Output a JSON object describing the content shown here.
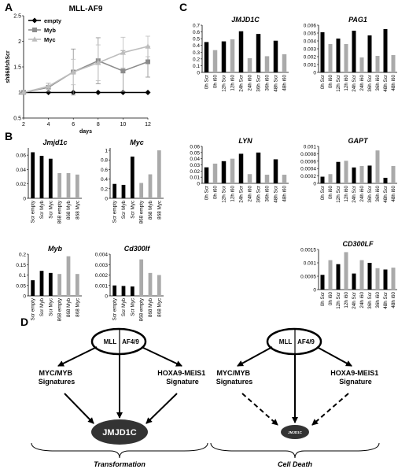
{
  "panel_letters": {
    "A": "A",
    "B": "B",
    "C": "C",
    "D": "D"
  },
  "colors": {
    "dark": "#000000",
    "light": "#aaaaaa",
    "mid": "#8c8c8c",
    "lightline": "#bdbdbd"
  },
  "chart_data": [
    {
      "id": "A",
      "type": "line",
      "title": "MLL-AF9",
      "xlabel": "days",
      "ylabel": "sh868/shScr",
      "x": [
        2,
        4,
        6,
        8,
        10,
        12
      ],
      "xlim": [
        2,
        12
      ],
      "ylim": [
        0.5,
        2.5
      ],
      "xticks": [
        "2",
        "4",
        "6",
        "8",
        "10",
        "12"
      ],
      "yticks": [
        "0.5",
        "1",
        "1.5",
        "2",
        "2.5"
      ],
      "grid": false,
      "legend_position": "top-left",
      "series": [
        {
          "name": "empty",
          "values": [
            1,
            1,
            1,
            1,
            1,
            1
          ],
          "err": [
            0,
            0,
            0,
            0,
            0,
            0
          ],
          "color": "#000000",
          "marker": "diamond"
        },
        {
          "name": "Myb",
          "values": [
            1,
            1.1,
            1.4,
            1.62,
            1.42,
            1.6
          ],
          "err": [
            0,
            0.08,
            0.45,
            0.45,
            0.4,
            0.3
          ],
          "color": "#8c8c8c",
          "marker": "square"
        },
        {
          "name": "Myc",
          "values": [
            1,
            1.12,
            1.4,
            1.58,
            1.78,
            1.9
          ],
          "err": [
            0,
            0.06,
            0.25,
            0.35,
            0.3,
            0.2
          ],
          "color": "#bdbdbd",
          "marker": "triangle"
        }
      ]
    },
    {
      "id": "B1",
      "type": "bar",
      "title": "Jmjd1c",
      "categories": [
        "Scr empty",
        "Scr Myb",
        "Scr Myc",
        "868 empty",
        "868 Myb",
        "868 Myc"
      ],
      "values": [
        0.064,
        0.059,
        0.055,
        0.035,
        0.035,
        0.033
      ],
      "bar_colors": [
        "dark",
        "dark",
        "dark",
        "light",
        "light",
        "light"
      ],
      "ylim": [
        0,
        0.07
      ],
      "yticks": [
        "0",
        "0.02",
        "0.04",
        "0.06"
      ]
    },
    {
      "id": "B2",
      "type": "bar",
      "title": "Myc",
      "categories": [
        "Scr empty",
        "Scr Myb",
        "Scr Myc",
        "868 empty",
        "868 Myb",
        "868 Myc"
      ],
      "values": [
        0.3,
        0.28,
        0.87,
        0.32,
        0.5,
        1.0
      ],
      "bar_colors": [
        "dark",
        "dark",
        "dark",
        "light",
        "light",
        "light"
      ],
      "ylim": [
        0,
        1.05
      ],
      "yticks": [
        "0",
        "0.2",
        "0.4",
        "0.6",
        "0.8",
        "1"
      ]
    },
    {
      "id": "B3",
      "type": "bar",
      "title": "Myb",
      "categories": [
        "Scr empty",
        "Scr Myb",
        "Scr Myc",
        "868 empty",
        "868 Myb",
        "868 Myc"
      ],
      "values": [
        0.075,
        0.12,
        0.11,
        0.105,
        0.19,
        0.105
      ],
      "bar_colors": [
        "dark",
        "dark",
        "dark",
        "light",
        "light",
        "light"
      ],
      "ylim": [
        0,
        0.2
      ],
      "yticks": [
        "0",
        "0.05",
        "0.1",
        "0.15",
        "0.2"
      ]
    },
    {
      "id": "B4",
      "type": "bar",
      "title": "Cd300lf",
      "categories": [
        "Scr empty",
        "Scr Myb",
        "Scr Myc",
        "868 empty",
        "868 Myb",
        "868 Myc"
      ],
      "values": [
        0.001,
        0.00095,
        0.0009,
        0.0035,
        0.0022,
        0.002
      ],
      "bar_colors": [
        "dark",
        "dark",
        "dark",
        "light",
        "light",
        "light"
      ],
      "ylim": [
        0,
        0.004
      ],
      "yticks": [
        "0",
        "0.001",
        "0.002",
        "0.003",
        "0.004"
      ]
    },
    {
      "id": "C1",
      "type": "bar",
      "title": "JMJD1C",
      "categories": [
        "0h Scr",
        "0h i60",
        "12h Scr",
        "12h i60",
        "24h Scr",
        "24h i60",
        "36h Scr",
        "36h i60",
        "48h Scr",
        "48h i60"
      ],
      "values": [
        0.45,
        0.33,
        0.46,
        0.49,
        0.61,
        0.21,
        0.57,
        0.24,
        0.47,
        0.27
      ],
      "bar_colors": [
        "dark",
        "light",
        "dark",
        "light",
        "dark",
        "light",
        "dark",
        "light",
        "dark",
        "light"
      ],
      "ylim": [
        0,
        0.7
      ],
      "yticks": [
        "0",
        "0.1",
        "0.2",
        "0.3",
        "0.4",
        "0.5",
        "0.6",
        "0.7"
      ]
    },
    {
      "id": "C2",
      "type": "bar",
      "title": "PAG1",
      "categories": [
        "0h Scr",
        "0h i60",
        "12h Scr",
        "12h i60",
        "24h Scr",
        "24h i60",
        "36h Scr",
        "36h i60",
        "48h Scr",
        "48h i60"
      ],
      "values": [
        0.0051,
        0.0036,
        0.0043,
        0.0036,
        0.0053,
        0.0019,
        0.0047,
        0.0021,
        0.0055,
        0.0022
      ],
      "bar_colors": [
        "dark",
        "light",
        "dark",
        "light",
        "dark",
        "light",
        "dark",
        "light",
        "dark",
        "light"
      ],
      "ylim": [
        0,
        0.006
      ],
      "yticks": [
        "0",
        "0.001",
        "0.002",
        "0.003",
        "0.004",
        "0.005",
        "0.006"
      ]
    },
    {
      "id": "C3",
      "type": "bar",
      "title": "LYN",
      "categories": [
        "0h Scr",
        "0h i60",
        "12h Scr",
        "12h i60",
        "24h Scr",
        "24h i60",
        "36h Scr",
        "36h i60",
        "48h Scr",
        "48h i60"
      ],
      "values": [
        0.026,
        0.032,
        0.036,
        0.04,
        0.048,
        0.015,
        0.05,
        0.014,
        0.039,
        0.014
      ],
      "bar_colors": [
        "dark",
        "light",
        "dark",
        "light",
        "dark",
        "light",
        "dark",
        "light",
        "dark",
        "light"
      ],
      "ylim": [
        0,
        0.06
      ],
      "yticks": [
        "0",
        "0.01",
        "0.02",
        "0.03",
        "0.04",
        "0.05",
        "0.06"
      ]
    },
    {
      "id": "C4",
      "type": "bar",
      "title": "GAPT",
      "categories": [
        "0h Scr",
        "0h i60",
        "12h Scr",
        "12h i60",
        "24h Scr",
        "24h i60",
        "36h Scr",
        "36h i60",
        "48h Scr",
        "48h i60"
      ],
      "values": [
        0.00018,
        0.00025,
        0.00058,
        0.00061,
        0.00043,
        0.00047,
        0.00048,
        0.00089,
        0.00015,
        0.00047
      ],
      "bar_colors": [
        "dark",
        "light",
        "dark",
        "light",
        "dark",
        "light",
        "dark",
        "light",
        "dark",
        "light"
      ],
      "ylim": [
        0,
        0.001
      ],
      "yticks": [
        "0",
        "0.0002",
        "0.0004",
        "0.0006",
        "0.0008",
        "0.001"
      ]
    },
    {
      "id": "C5",
      "type": "bar",
      "title": "CD300LF",
      "categories": [
        "0h Scr",
        "0h i60",
        "12h Scr",
        "12h i60",
        "24h Scr",
        "24h i60",
        "36h Scr",
        "36h i60",
        "48h Scr",
        "48h i60"
      ],
      "values": [
        0.00055,
        0.0011,
        0.00095,
        0.0014,
        0.0006,
        0.0011,
        0.001,
        0.0008,
        0.00075,
        0.00082
      ],
      "bar_colors": [
        "dark",
        "light",
        "dark",
        "light",
        "dark",
        "light",
        "dark",
        "light",
        "dark",
        "light"
      ],
      "ylim": [
        0,
        0.0015
      ],
      "yticks": [
        "0",
        "0.0005",
        "0.001",
        "0.0015"
      ]
    }
  ],
  "diagram": {
    "left": {
      "top_left": "MLL",
      "top_right": "AF4/9",
      "left_label": [
        "MYC/MYB",
        "Signatures"
      ],
      "right_label": [
        "HOXA9-MEIS1",
        "Signature"
      ],
      "center": "JMJD1C",
      "caption": "Transformation"
    },
    "right": {
      "top_left": "MLL",
      "top_right": "AF4/9",
      "left_label": [
        "MYC/MYB",
        "Signatures"
      ],
      "right_label": [
        "HOXA9-MEIS1",
        "Signature"
      ],
      "center": "JMJD1C",
      "caption": "Cell Death"
    }
  }
}
